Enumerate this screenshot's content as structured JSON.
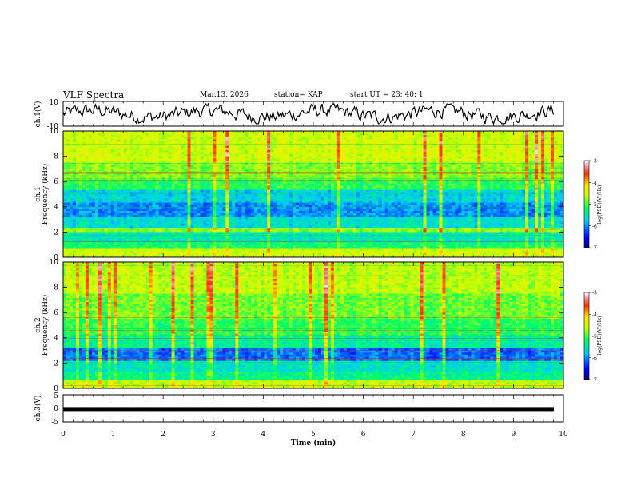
{
  "header": {
    "title": "VLF Spectra",
    "date": "Mar.13, 2026",
    "station": "station= KAP",
    "start": "start  UT  =   23: 40: 1"
  },
  "chart_data": [
    {
      "name": "ch1-waveform",
      "type": "line",
      "ylabel": "ch.1(V)",
      "ylim": [
        -10,
        10
      ],
      "yticks": [
        "10",
        "-10"
      ],
      "xlim": [
        0,
        10
      ],
      "description_values": "noisy waveform oscillating around 0 V"
    },
    {
      "name": "ch1-spectrogram",
      "type": "heatmap",
      "ylabel_channel": "ch.1",
      "ylabel": "Frequency (kHz)",
      "ylim": [
        0,
        10
      ],
      "yticks": [
        "0",
        "2",
        "4",
        "6",
        "8",
        "10"
      ],
      "xlim": [
        0,
        10
      ],
      "colorbar": {
        "label": "log(PSD)(V²/Hz)",
        "range": [
          -7,
          -3
        ],
        "ticks": [
          "-3",
          "-4",
          "-5",
          "-6",
          "-7"
        ]
      },
      "bands": [
        {
          "from": 0,
          "to": 0.6,
          "level": 0.62
        },
        {
          "from": 0.6,
          "to": 1.2,
          "level": 0.45
        },
        {
          "from": 1.2,
          "to": 2.0,
          "level": 0.38
        },
        {
          "from": 2.0,
          "to": 2.4,
          "level": 0.55
        },
        {
          "from": 2.4,
          "to": 3.2,
          "level": 0.35
        },
        {
          "from": 3.2,
          "to": 4.4,
          "level": 0.25
        },
        {
          "from": 4.4,
          "to": 5.3,
          "level": 0.33
        },
        {
          "from": 5.3,
          "to": 6.2,
          "level": 0.47
        },
        {
          "from": 6.2,
          "to": 7.5,
          "level": 0.55
        },
        {
          "from": 7.5,
          "to": 10,
          "level": 0.62
        }
      ]
    },
    {
      "name": "ch2-spectrogram",
      "type": "heatmap",
      "ylabel_channel": "ch.2",
      "ylabel": "Frequency (kHz)",
      "ylim": [
        0,
        10
      ],
      "yticks": [
        "0",
        "2",
        "4",
        "6",
        "8",
        "10"
      ],
      "xlim": [
        0,
        10
      ],
      "colorbar": {
        "label": "log(PSD)(V²/Hz)",
        "range": [
          -7,
          -3
        ],
        "ticks": [
          "-3",
          "-4",
          "-5",
          "-6",
          "-7"
        ]
      },
      "bands": [
        {
          "from": 0,
          "to": 0.6,
          "level": 0.6
        },
        {
          "from": 0.6,
          "to": 1.4,
          "level": 0.42
        },
        {
          "from": 1.4,
          "to": 2.1,
          "level": 0.36
        },
        {
          "from": 2.1,
          "to": 3.1,
          "level": 0.22
        },
        {
          "from": 3.1,
          "to": 4.2,
          "level": 0.4
        },
        {
          "from": 4.2,
          "to": 5.5,
          "level": 0.47
        },
        {
          "from": 5.5,
          "to": 7.5,
          "level": 0.53
        },
        {
          "from": 7.5,
          "to": 10,
          "level": 0.6
        }
      ]
    },
    {
      "name": "ch3-waveform",
      "type": "line",
      "ylabel": "ch.3(V)",
      "ylim": [
        -5,
        5
      ],
      "yticks": [
        "5",
        "0",
        "-5"
      ],
      "xlim": [
        0,
        10
      ],
      "value": -0.4,
      "xlabel": "Time (min)",
      "xticks": [
        "0",
        "1",
        "2",
        "3",
        "4",
        "5",
        "6",
        "7",
        "8",
        "9",
        "10"
      ]
    }
  ]
}
